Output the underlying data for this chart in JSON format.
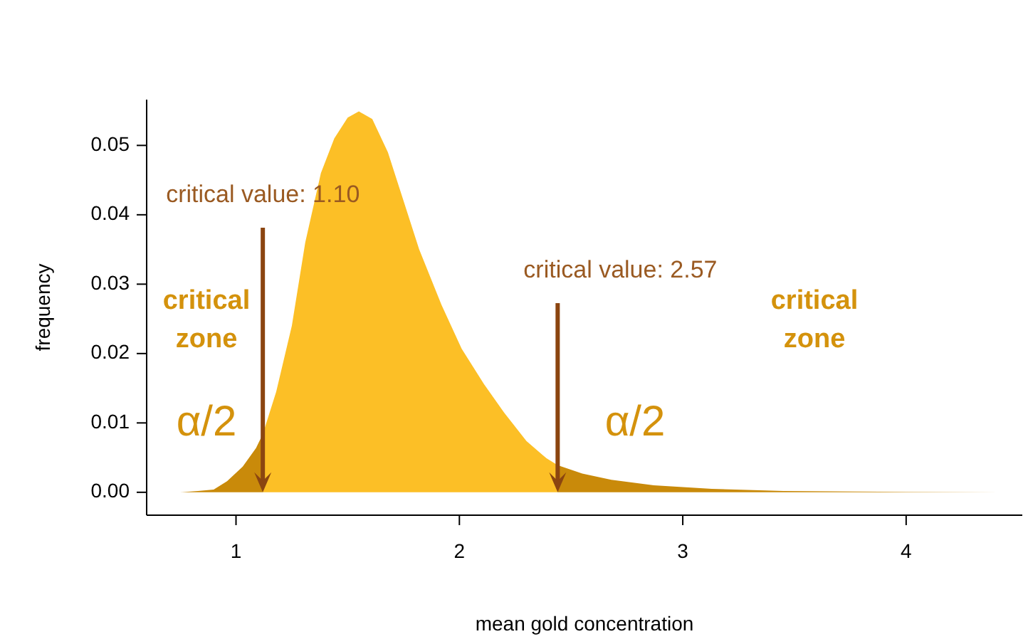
{
  "chart_data": {
    "type": "area",
    "xlabel": "mean gold concentration",
    "ylabel": "frequency",
    "xlim": [
      0.6,
      4.52
    ],
    "ylim": [
      -0.0033,
      0.0566
    ],
    "xticks": [
      1,
      2,
      3,
      4
    ],
    "yticks": [
      {
        "value": 0,
        "label": "0.00"
      },
      {
        "value": 0.01,
        "label": "0.01"
      },
      {
        "value": 0.02,
        "label": "0.02"
      },
      {
        "value": 0.03,
        "label": "0.03"
      },
      {
        "value": 0.04,
        "label": "0.04"
      },
      {
        "value": 0.05,
        "label": "0.05"
      }
    ],
    "grid": false,
    "series": [
      {
        "color": "#c98a0a",
        "x": [
          0.75,
          0.83,
          0.9,
          0.96,
          1.03,
          1.09,
          1.12
        ],
        "values": [
          0,
          0.0002,
          0.0004,
          0.0016,
          0.0037,
          0.0064,
          0.0084
        ]
      },
      {
        "color": "#fcbf26",
        "x": [
          1.12,
          1.18,
          1.25,
          1.31,
          1.38,
          1.44,
          1.5,
          1.55,
          1.61,
          1.68,
          1.74,
          1.82,
          1.92,
          2.01,
          2.11,
          2.2,
          2.3,
          2.39,
          2.44
        ],
        "values": [
          0.0084,
          0.0145,
          0.024,
          0.036,
          0.046,
          0.051,
          0.054,
          0.0549,
          0.0538,
          0.049,
          0.043,
          0.035,
          0.027,
          0.0207,
          0.0156,
          0.0115,
          0.0074,
          0.0049,
          0.0039
        ]
      },
      {
        "color": "#c98a0a",
        "x": [
          2.44,
          2.55,
          2.68,
          2.87,
          3.13,
          3.45,
          3.76,
          4.42
        ],
        "values": [
          0.0039,
          0.0027,
          0.0018,
          0.001,
          0.0005,
          0.0002,
          0.0001,
          0
        ]
      }
    ],
    "annotations": [
      {
        "text": "critical value: 1.10",
        "x": 1.12,
        "y": 0
      },
      {
        "text": "critical value: 2.57",
        "x": 2.44,
        "y": 0
      },
      "critical zone",
      "critical zone",
      "α/2",
      "α/2"
    ]
  }
}
